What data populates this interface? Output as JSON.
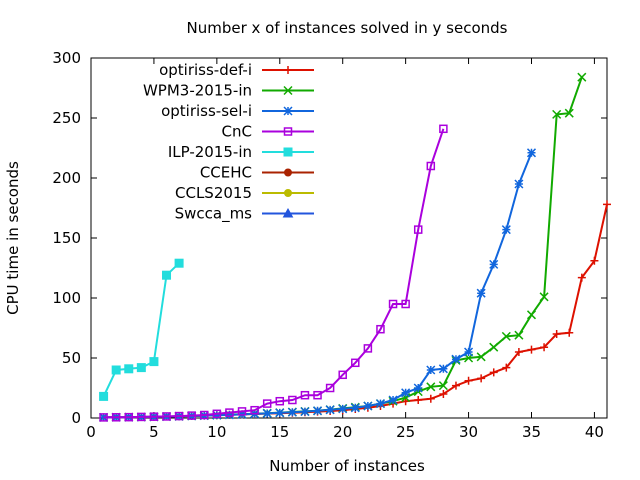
{
  "chart_data": {
    "type": "line",
    "title": "Number x of instances solved in y seconds",
    "xlabel": "Number of instances",
    "ylabel": "CPU time in seconds",
    "xlim": [
      0,
      41
    ],
    "ylim": [
      0,
      300
    ],
    "xticks": [
      0,
      5,
      10,
      15,
      20,
      25,
      30,
      35,
      40
    ],
    "yticks": [
      0,
      50,
      100,
      150,
      200,
      250,
      300
    ],
    "grid": false,
    "legend": "top-left inside plot, lines with markers",
    "series": [
      {
        "name": "optiriss-def-i",
        "color": "#dd1100",
        "marker": "plus",
        "points": [
          [
            1,
            0.5
          ],
          [
            2,
            0.6
          ],
          [
            3,
            0.7
          ],
          [
            4,
            0.8
          ],
          [
            5,
            1.0
          ],
          [
            6,
            1.2
          ],
          [
            7,
            1.4
          ],
          [
            8,
            1.7
          ],
          [
            9,
            2.0
          ],
          [
            10,
            2.3
          ],
          [
            11,
            2.7
          ],
          [
            12,
            3.0
          ],
          [
            13,
            3.3
          ],
          [
            14,
            3.7
          ],
          [
            15,
            4.0
          ],
          [
            16,
            4.4
          ],
          [
            17,
            4.8
          ],
          [
            18,
            5.3
          ],
          [
            19,
            5.8
          ],
          [
            20,
            6.5
          ],
          [
            21,
            7.5
          ],
          [
            22,
            8.5
          ],
          [
            23,
            10
          ],
          [
            24,
            12
          ],
          [
            25,
            14
          ],
          [
            26,
            15
          ],
          [
            27,
            16
          ],
          [
            28,
            20
          ],
          [
            29,
            27
          ],
          [
            30,
            31
          ],
          [
            31,
            33
          ],
          [
            32,
            38
          ],
          [
            33,
            42
          ],
          [
            34,
            55
          ],
          [
            35,
            57
          ],
          [
            36,
            59
          ],
          [
            37,
            70
          ],
          [
            38,
            71
          ],
          [
            39,
            117
          ],
          [
            40,
            131
          ],
          [
            41,
            178
          ]
        ]
      },
      {
        "name": "WPM3-2015-in",
        "color": "#11aa00",
        "marker": "x",
        "points": [
          [
            1,
            0.5
          ],
          [
            2,
            0.6
          ],
          [
            3,
            0.7
          ],
          [
            4,
            0.8
          ],
          [
            5,
            1.0
          ],
          [
            6,
            1.2
          ],
          [
            7,
            1.4
          ],
          [
            8,
            1.7
          ],
          [
            9,
            2.0
          ],
          [
            10,
            2.4
          ],
          [
            11,
            2.8
          ],
          [
            12,
            3.2
          ],
          [
            13,
            3.6
          ],
          [
            14,
            4.0
          ],
          [
            15,
            4.5
          ],
          [
            16,
            5.0
          ],
          [
            17,
            5.5
          ],
          [
            18,
            6.0
          ],
          [
            19,
            7.0
          ],
          [
            20,
            8.0
          ],
          [
            21,
            9.0
          ],
          [
            22,
            10
          ],
          [
            23,
            12
          ],
          [
            24,
            14
          ],
          [
            25,
            17
          ],
          [
            26,
            22
          ],
          [
            27,
            26
          ],
          [
            28,
            27
          ],
          [
            29,
            48
          ],
          [
            30,
            50
          ],
          [
            31,
            51
          ],
          [
            32,
            59
          ],
          [
            33,
            68
          ],
          [
            34,
            69
          ],
          [
            35,
            86
          ],
          [
            36,
            101
          ],
          [
            37,
            253
          ],
          [
            38,
            254
          ],
          [
            39,
            284
          ]
        ]
      },
      {
        "name": "optiriss-sel-i",
        "color": "#1166dd",
        "marker": "star",
        "points": [
          [
            1,
            0.5
          ],
          [
            2,
            0.6
          ],
          [
            3,
            0.7
          ],
          [
            4,
            0.8
          ],
          [
            5,
            1.0
          ],
          [
            6,
            1.2
          ],
          [
            7,
            1.4
          ],
          [
            8,
            1.7
          ],
          [
            9,
            2.0
          ],
          [
            10,
            2.3
          ],
          [
            11,
            2.6
          ],
          [
            12,
            3.0
          ],
          [
            13,
            3.4
          ],
          [
            14,
            3.8
          ],
          [
            15,
            4.3
          ],
          [
            16,
            4.8
          ],
          [
            17,
            5.3
          ],
          [
            18,
            6.0
          ],
          [
            19,
            6.8
          ],
          [
            20,
            7.6
          ],
          [
            21,
            8.5
          ],
          [
            22,
            10
          ],
          [
            23,
            12
          ],
          [
            24,
            15
          ],
          [
            25,
            21
          ],
          [
            26,
            25
          ],
          [
            27,
            40
          ],
          [
            28,
            41
          ],
          [
            29,
            49
          ],
          [
            30,
            55
          ],
          [
            31,
            104
          ],
          [
            32,
            128
          ],
          [
            33,
            157
          ],
          [
            34,
            195
          ],
          [
            35,
            221
          ]
        ]
      },
      {
        "name": "CnC",
        "color": "#aa00dd",
        "marker": "square",
        "points": [
          [
            1,
            0.5
          ],
          [
            2,
            0.6
          ],
          [
            3,
            0.7
          ],
          [
            4,
            0.9
          ],
          [
            5,
            1.1
          ],
          [
            6,
            1.3
          ],
          [
            7,
            1.6
          ],
          [
            8,
            2.0
          ],
          [
            9,
            2.5
          ],
          [
            10,
            3.5
          ],
          [
            11,
            4.5
          ],
          [
            12,
            5.5
          ],
          [
            13,
            6.5
          ],
          [
            14,
            12
          ],
          [
            15,
            14
          ],
          [
            16,
            15
          ],
          [
            17,
            19
          ],
          [
            18,
            19
          ],
          [
            19,
            25
          ],
          [
            20,
            36
          ],
          [
            21,
            46
          ],
          [
            22,
            58
          ],
          [
            23,
            74
          ],
          [
            24,
            95
          ],
          [
            25,
            95
          ],
          [
            26,
            157
          ],
          [
            27,
            210
          ],
          [
            28,
            241
          ]
        ]
      },
      {
        "name": "ILP-2015-in",
        "color": "#22dddd",
        "marker": "filled-square",
        "points": [
          [
            1,
            18
          ],
          [
            2,
            40
          ],
          [
            3,
            41
          ],
          [
            4,
            42
          ],
          [
            5,
            47
          ],
          [
            6,
            119
          ],
          [
            7,
            129
          ]
        ]
      },
      {
        "name": "CCEHC",
        "color": "#aa2200",
        "marker": "filled-circle",
        "points": []
      },
      {
        "name": "CCLS2015",
        "color": "#bbbb00",
        "marker": "filled-circle",
        "points": []
      },
      {
        "name": "Swcca_ms",
        "color": "#2255dd",
        "marker": "filled-triangle",
        "points": []
      }
    ]
  }
}
